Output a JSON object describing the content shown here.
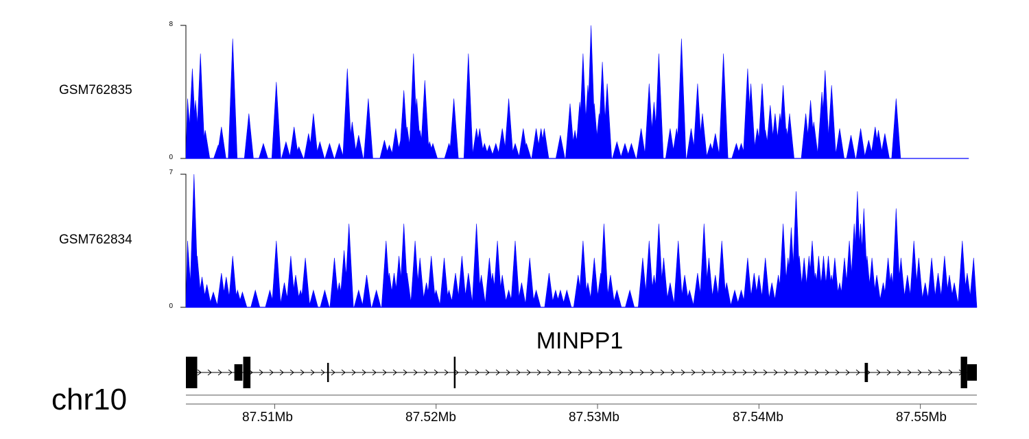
{
  "chart_data": {
    "type": "area",
    "colors": {
      "signal": "#0000ff",
      "axis": "#000000",
      "gene": "#000000"
    },
    "xrange_mb": [
      87.5045,
      87.5535
    ],
    "x_ticks": [
      {
        "pos": 87.51,
        "label": "87.51Mb"
      },
      {
        "pos": 87.52,
        "label": "87.52Mb"
      },
      {
        "pos": 87.53,
        "label": "87.53Mb"
      },
      {
        "pos": 87.54,
        "label": "87.54Mb"
      },
      {
        "pos": 87.55,
        "label": "87.55Mb"
      }
    ],
    "chromosome": "chr10",
    "tracks": [
      {
        "name": "GSM762835",
        "ylim": [
          0,
          8
        ],
        "ytick_labels": [
          "8",
          "0"
        ],
        "end": 87.553,
        "peaks": [
          [
            87.5046,
            3.6
          ],
          [
            87.5049,
            5.4
          ],
          [
            87.5051,
            3.5
          ],
          [
            87.5054,
            6.3
          ],
          [
            87.5057,
            1.7
          ],
          [
            87.5065,
            0.8
          ],
          [
            87.5067,
            1.9
          ],
          [
            87.5074,
            7.2
          ],
          [
            87.5084,
            2.7
          ],
          [
            87.5093,
            0.9
          ],
          [
            87.5101,
            4.6
          ],
          [
            87.5107,
            1.0
          ],
          [
            87.5112,
            1.9
          ],
          [
            87.5115,
            0.7
          ],
          [
            87.5121,
            1.5
          ],
          [
            87.5124,
            2.7
          ],
          [
            87.5128,
            1.0
          ],
          [
            87.5134,
            0.9
          ],
          [
            87.514,
            0.9
          ],
          [
            87.5145,
            5.4
          ],
          [
            87.5148,
            2.2
          ],
          [
            87.5152,
            1.4
          ],
          [
            87.5158,
            3.6
          ],
          [
            87.5168,
            1.1
          ],
          [
            87.5171,
            0.8
          ],
          [
            87.5175,
            1.8
          ],
          [
            87.5178,
            1.1
          ],
          [
            87.518,
            4.1
          ],
          [
            87.5182,
            1.9
          ],
          [
            87.5186,
            6.3
          ],
          [
            87.5188,
            3.6
          ],
          [
            87.519,
            1.7
          ],
          [
            87.5193,
            4.7
          ],
          [
            87.5196,
            1.0
          ],
          [
            87.5198,
            0.9
          ],
          [
            87.5208,
            0.9
          ],
          [
            87.5211,
            3.6
          ],
          [
            87.522,
            6.3
          ],
          [
            87.5225,
            1.8
          ],
          [
            87.5227,
            1.8
          ],
          [
            87.523,
            0.9
          ],
          [
            87.5233,
            0.8
          ],
          [
            87.5237,
            0.9
          ],
          [
            87.5241,
            1.8
          ],
          [
            87.5245,
            3.6
          ],
          [
            87.5249,
            0.9
          ],
          [
            87.5254,
            1.8
          ],
          [
            87.5256,
            0.9
          ],
          [
            87.5262,
            1.8
          ],
          [
            87.5265,
            1.8
          ],
          [
            87.5267,
            1.8
          ],
          [
            87.5277,
            1.4
          ],
          [
            87.5283,
            3.3
          ],
          [
            87.5286,
            1.7
          ],
          [
            87.5289,
            3.4
          ],
          [
            87.5291,
            6.3
          ],
          [
            87.5294,
            4.4
          ],
          [
            87.5296,
            8.0
          ],
          [
            87.5298,
            3.3
          ],
          [
            87.5301,
            2.7
          ],
          [
            87.5303,
            5.8
          ],
          [
            87.5306,
            4.5
          ],
          [
            87.5312,
            1.0
          ],
          [
            87.5317,
            0.9
          ],
          [
            87.5321,
            0.9
          ],
          [
            87.5327,
            1.8
          ],
          [
            87.5332,
            4.5
          ],
          [
            87.5335,
            3.4
          ],
          [
            87.5338,
            6.3
          ],
          [
            87.5345,
            1.8
          ],
          [
            87.5349,
            1.8
          ],
          [
            87.5352,
            7.2
          ],
          [
            87.5358,
            1.8
          ],
          [
            87.5362,
            4.5
          ],
          [
            87.5365,
            2.7
          ],
          [
            87.537,
            0.9
          ],
          [
            87.5373,
            1.5
          ],
          [
            87.5378,
            6.3
          ],
          [
            87.5386,
            0.9
          ],
          [
            87.5389,
            0.9
          ],
          [
            87.5393,
            5.4
          ],
          [
            87.5395,
            4.5
          ],
          [
            87.5399,
            1.8
          ],
          [
            87.5402,
            4.5
          ],
          [
            87.5404,
            1.7
          ],
          [
            87.5407,
            3.2
          ],
          [
            87.541,
            2.7
          ],
          [
            87.5413,
            2.7
          ],
          [
            87.5415,
            4.4
          ],
          [
            87.5417,
            1.8
          ],
          [
            87.5419,
            2.7
          ],
          [
            87.5429,
            2.7
          ],
          [
            87.5432,
            3.5
          ],
          [
            87.5434,
            2.2
          ],
          [
            87.5439,
            4.0
          ],
          [
            87.5441,
            5.3
          ],
          [
            87.5445,
            4.4
          ],
          [
            87.545,
            1.8
          ],
          [
            87.5457,
            1.4
          ],
          [
            87.5463,
            1.8
          ],
          [
            87.5468,
            1.1
          ],
          [
            87.5472,
            1.9
          ],
          [
            87.5474,
            1.7
          ],
          [
            87.5478,
            1.5
          ],
          [
            87.5485,
            3.6
          ]
        ]
      },
      {
        "name": "GSM762834",
        "ylim": [
          0,
          7
        ],
        "ytick_labels": [
          "7",
          "0"
        ],
        "end": 87.5535,
        "peaks": [
          [
            87.5046,
            3.5
          ],
          [
            87.5049,
            2.5
          ],
          [
            87.505,
            7.0
          ],
          [
            87.5052,
            2.7
          ],
          [
            87.5055,
            1.6
          ],
          [
            87.5058,
            1.2
          ],
          [
            87.5062,
            0.8
          ],
          [
            87.5067,
            1.8
          ],
          [
            87.507,
            1.6
          ],
          [
            87.5074,
            2.7
          ],
          [
            87.5077,
            0.9
          ],
          [
            87.508,
            0.8
          ],
          [
            87.5088,
            0.9
          ],
          [
            87.5097,
            0.9
          ],
          [
            87.5101,
            3.5
          ],
          [
            87.5106,
            1.3
          ],
          [
            87.511,
            2.7
          ],
          [
            87.5113,
            1.7
          ],
          [
            87.5116,
            0.9
          ],
          [
            87.5119,
            2.6
          ],
          [
            87.5124,
            0.9
          ],
          [
            87.5131,
            0.9
          ],
          [
            87.5137,
            2.6
          ],
          [
            87.514,
            1.3
          ],
          [
            87.5143,
            3.0
          ],
          [
            87.5146,
            4.4
          ],
          [
            87.5152,
            0.9
          ],
          [
            87.5157,
            1.7
          ],
          [
            87.5163,
            0.9
          ],
          [
            87.5169,
            3.5
          ],
          [
            87.5171,
            1.8
          ],
          [
            87.5174,
            1.8
          ],
          [
            87.5177,
            2.7
          ],
          [
            87.518,
            4.4
          ],
          [
            87.5182,
            1.8
          ],
          [
            87.5187,
            3.5
          ],
          [
            87.519,
            2.6
          ],
          [
            87.5194,
            1.3
          ],
          [
            87.5197,
            2.7
          ],
          [
            87.52,
            0.9
          ],
          [
            87.5205,
            2.6
          ],
          [
            87.5208,
            0.9
          ],
          [
            87.5212,
            1.8
          ],
          [
            87.5216,
            2.7
          ],
          [
            87.522,
            1.8
          ],
          [
            87.5225,
            4.4
          ],
          [
            87.5228,
            1.7
          ],
          [
            87.5233,
            2.6
          ],
          [
            87.5235,
            1.8
          ],
          [
            87.5238,
            3.5
          ],
          [
            87.5241,
            1.7
          ],
          [
            87.5245,
            0.9
          ],
          [
            87.5249,
            3.5
          ],
          [
            87.5253,
            1.3
          ],
          [
            87.5258,
            2.6
          ],
          [
            87.5262,
            0.9
          ],
          [
            87.527,
            1.8
          ],
          [
            87.5274,
            0.9
          ],
          [
            87.5277,
            0.9
          ],
          [
            87.5281,
            0.9
          ],
          [
            87.5288,
            1.7
          ],
          [
            87.5291,
            3.5
          ],
          [
            87.5294,
            1.3
          ],
          [
            87.5298,
            2.6
          ],
          [
            87.5302,
            1.8
          ],
          [
            87.5304,
            4.4
          ],
          [
            87.5308,
            1.7
          ],
          [
            87.5312,
            0.9
          ],
          [
            87.532,
            0.9
          ],
          [
            87.5328,
            2.6
          ],
          [
            87.5332,
            3.5
          ],
          [
            87.5335,
            1.7
          ],
          [
            87.5338,
            4.4
          ],
          [
            87.5341,
            2.6
          ],
          [
            87.5345,
            1.3
          ],
          [
            87.535,
            3.5
          ],
          [
            87.5354,
            1.7
          ],
          [
            87.5357,
            0.9
          ],
          [
            87.5362,
            1.8
          ],
          [
            87.5366,
            4.4
          ],
          [
            87.5369,
            2.6
          ],
          [
            87.5373,
            1.7
          ],
          [
            87.5377,
            3.5
          ],
          [
            87.538,
            1.3
          ],
          [
            87.5385,
            0.9
          ],
          [
            87.5389,
            0.9
          ],
          [
            87.5393,
            2.6
          ],
          [
            87.5397,
            1.8
          ],
          [
            87.54,
            1.7
          ],
          [
            87.5404,
            2.6
          ],
          [
            87.5408,
            1.3
          ],
          [
            87.5412,
            1.7
          ],
          [
            87.5415,
            4.4
          ],
          [
            87.5418,
            2.6
          ],
          [
            87.542,
            4.2
          ],
          [
            87.5423,
            6.1
          ],
          [
            87.5425,
            2.7
          ],
          [
            87.5428,
            2.6
          ],
          [
            87.5431,
            2.7
          ],
          [
            87.5433,
            3.5
          ],
          [
            87.5435,
            1.8
          ],
          [
            87.5437,
            2.7
          ],
          [
            87.544,
            2.7
          ],
          [
            87.5443,
            2.7
          ],
          [
            87.5445,
            1.7
          ],
          [
            87.5447,
            2.6
          ],
          [
            87.545,
            1.3
          ],
          [
            87.5453,
            2.6
          ],
          [
            87.5456,
            3.5
          ],
          [
            87.5459,
            4.4
          ],
          [
            87.5461,
            6.1
          ],
          [
            87.5463,
            4.4
          ],
          [
            87.5465,
            5.2
          ],
          [
            87.5467,
            2.7
          ],
          [
            87.547,
            2.6
          ],
          [
            87.5473,
            1.7
          ],
          [
            87.5477,
            1.3
          ],
          [
            87.548,
            2.6
          ],
          [
            87.5482,
            1.8
          ],
          [
            87.5485,
            5.2
          ],
          [
            87.5488,
            2.6
          ],
          [
            87.5492,
            1.7
          ],
          [
            87.5496,
            3.5
          ],
          [
            87.5499,
            2.6
          ],
          [
            87.5503,
            1.3
          ],
          [
            87.5507,
            2.6
          ],
          [
            87.5511,
            1.8
          ],
          [
            87.5515,
            2.7
          ],
          [
            87.5518,
            1.7
          ],
          [
            87.5521,
            1.3
          ],
          [
            87.5526,
            3.5
          ],
          [
            87.5529,
            1.8
          ],
          [
            87.5533,
            2.6
          ]
        ]
      }
    ],
    "gene": {
      "name": "MINPP1",
      "strand": "+",
      "start": 87.5045,
      "end": 87.5535,
      "exons": [
        [
          87.5045,
          87.5052,
          "tall"
        ],
        [
          87.5075,
          87.508,
          "mid"
        ],
        [
          87.50805,
          87.50835,
          "tall"
        ],
        [
          87.5083,
          87.5085,
          "tall"
        ],
        [
          87.51325,
          87.51335,
          "thin"
        ],
        [
          87.5211,
          87.5212,
          "tall"
        ],
        [
          87.54655,
          87.54675,
          "thin"
        ],
        [
          87.5525,
          87.5529,
          "tall"
        ],
        [
          87.5529,
          87.5535,
          "mid"
        ]
      ]
    }
  }
}
